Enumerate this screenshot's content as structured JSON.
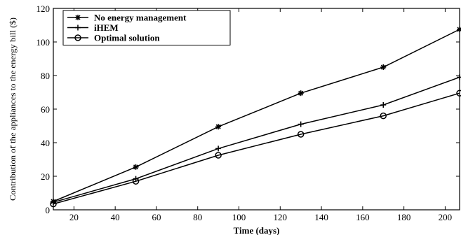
{
  "chart_data": {
    "type": "line",
    "title": "",
    "xlabel": "Time (days)",
    "ylabel": "Contribution of the appliances to the energy bill ($)",
    "xlim": [
      10,
      207
    ],
    "ylim": [
      0,
      120
    ],
    "xticks": [
      20,
      40,
      60,
      80,
      100,
      120,
      140,
      160,
      180,
      200
    ],
    "yticks": [
      0,
      20,
      40,
      60,
      80,
      100,
      120
    ],
    "grid": false,
    "legend_position": "top-left",
    "series": [
      {
        "name": "No energy management",
        "marker": "asterisk",
        "color": "#000000",
        "x": [
          10,
          50,
          90,
          130,
          170,
          207
        ],
        "y": [
          5,
          25.5,
          49.5,
          69.5,
          85,
          107.5
        ]
      },
      {
        "name": "iHEM",
        "marker": "plus",
        "color": "#000000",
        "x": [
          10,
          50,
          90,
          130,
          170,
          207
        ],
        "y": [
          4.5,
          18.5,
          36.5,
          51,
          62.5,
          79
        ]
      },
      {
        "name": "Optimal solution",
        "marker": "circle",
        "color": "#000000",
        "x": [
          10,
          50,
          90,
          130,
          170,
          207
        ],
        "y": [
          3.5,
          17,
          32.5,
          45,
          56,
          69.5
        ]
      }
    ]
  }
}
